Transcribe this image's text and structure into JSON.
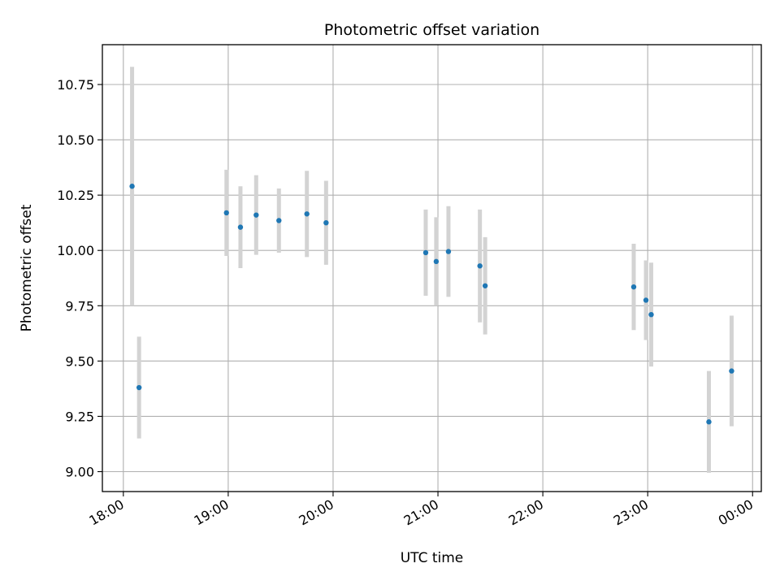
{
  "chart_data": {
    "type": "scatter",
    "title": "Photometric offset variation",
    "xlabel": "UTC time",
    "ylabel": "Photometric offset",
    "xlim": [
      "17:48",
      "00:05"
    ],
    "ylim": [
      8.91,
      10.93
    ],
    "grid": true,
    "x_ticks": [
      "18:00",
      "19:00",
      "20:00",
      "21:00",
      "22:00",
      "23:00",
      "00:00"
    ],
    "y_ticks": [
      "9.00",
      "9.25",
      "9.50",
      "9.75",
      "10.00",
      "10.25",
      "10.50",
      "10.75"
    ],
    "colors": {
      "marker": "#1f77b4",
      "errorbar": "#d3d3d3",
      "grid": "#b0b0b0"
    },
    "points": [
      {
        "time": "18:05",
        "y": 10.29,
        "yerr": 0.54
      },
      {
        "time": "18:09",
        "y": 9.38,
        "yerr": 0.23
      },
      {
        "time": "18:59",
        "y": 10.17,
        "yerr": 0.195
      },
      {
        "time": "19:07",
        "y": 10.105,
        "yerr": 0.185
      },
      {
        "time": "19:16",
        "y": 10.16,
        "yerr": 0.18
      },
      {
        "time": "19:29",
        "y": 10.135,
        "yerr": 0.145
      },
      {
        "time": "19:45",
        "y": 10.165,
        "yerr": 0.195
      },
      {
        "time": "19:56",
        "y": 10.125,
        "yerr": 0.19
      },
      {
        "time": "20:53",
        "y": 9.99,
        "yerr": 0.195
      },
      {
        "time": "20:59",
        "y": 9.95,
        "yerr": 0.2
      },
      {
        "time": "21:06",
        "y": 9.995,
        "yerr": 0.205
      },
      {
        "time": "21:24",
        "y": 9.93,
        "yerr": 0.255
      },
      {
        "time": "21:27",
        "y": 9.84,
        "yerr": 0.22
      },
      {
        "time": "22:52",
        "y": 9.835,
        "yerr": 0.195
      },
      {
        "time": "22:59",
        "y": 9.775,
        "yerr": 0.18
      },
      {
        "time": "23:02",
        "y": 9.71,
        "yerr": 0.235
      },
      {
        "time": "23:35",
        "y": 9.225,
        "yerr": 0.23
      },
      {
        "time": "23:48",
        "y": 9.455,
        "yerr": 0.25
      }
    ]
  }
}
